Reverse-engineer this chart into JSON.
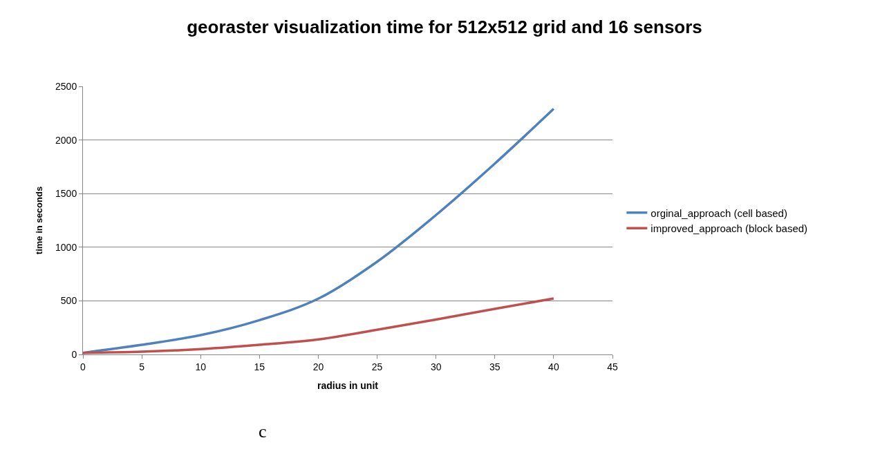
{
  "chart_data": {
    "type": "line",
    "title": "georaster visualization time for 512x512 grid and 16 sensors",
    "xlabel": "radius in unit",
    "ylabel": "time in seconds",
    "x": [
      0,
      5,
      10,
      15,
      20,
      25,
      30,
      35,
      40
    ],
    "series": [
      {
        "name": "orginal_approach (cell based)",
        "color": "#4f81bd",
        "values": [
          15,
          90,
          180,
          320,
          520,
          865,
          1300,
          1780,
          2290
        ]
      },
      {
        "name": "improved_approach (block based)",
        "color": "#c0504d",
        "values": [
          15,
          25,
          50,
          90,
          140,
          230,
          325,
          425,
          522
        ]
      }
    ],
    "xlim": [
      0,
      45
    ],
    "xticks": [
      0,
      5,
      10,
      15,
      20,
      25,
      30,
      35,
      40,
      45
    ],
    "ylim": [
      0,
      2500
    ],
    "yticks": [
      0,
      500,
      1000,
      1500,
      2000,
      2500
    ],
    "grid": "y",
    "legend": "right",
    "marker": "none",
    "line_style": "solid",
    "annotations": [
      "c"
    ]
  }
}
